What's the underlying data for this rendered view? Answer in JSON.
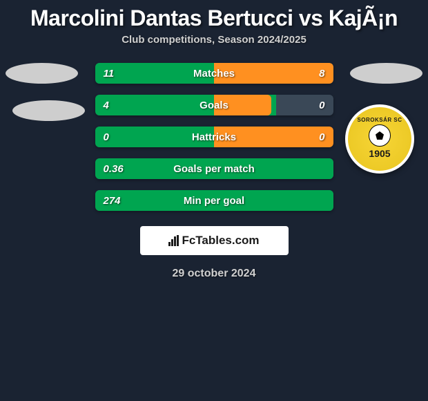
{
  "header": {
    "title": "Marcolini Dantas Bertucci vs KajÃ¡n",
    "subtitle": "Club competitions, Season 2024/2025"
  },
  "badge": {
    "text_top": "SOROKSÁR SC",
    "year": "1905"
  },
  "colors": {
    "background": "#1a2332",
    "bar_background": "#3a4857",
    "left_player": "#00a550",
    "right_player": "#ff9020",
    "text": "#ffffff"
  },
  "stats": [
    {
      "label": "Matches",
      "left_value": "11",
      "right_value": "8",
      "left_width_pct": 50,
      "right_width_pct": 50
    },
    {
      "label": "Goals",
      "left_value": "4",
      "right_value": "0",
      "left_width_pct": 76,
      "right_width_pct": 24
    },
    {
      "label": "Hattricks",
      "left_value": "0",
      "right_value": "0",
      "left_width_pct": 50,
      "right_width_pct": 50
    },
    {
      "label": "Goals per match",
      "left_value": "0.36",
      "right_value": "",
      "left_width_pct": 100,
      "right_width_pct": 0
    },
    {
      "label": "Min per goal",
      "left_value": "274",
      "right_value": "",
      "left_width_pct": 100,
      "right_width_pct": 0
    }
  ],
  "footer": {
    "logo_text": "FcTables.com",
    "date": "29 october 2024"
  }
}
